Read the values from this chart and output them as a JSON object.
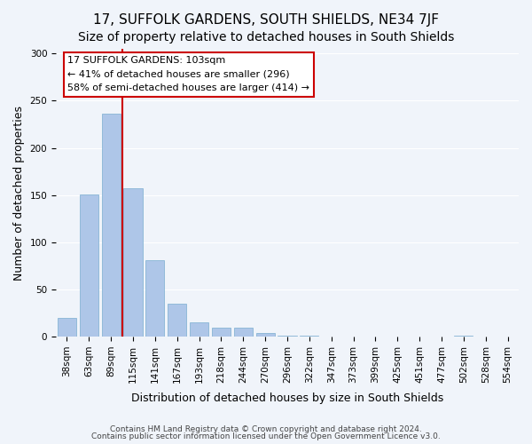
{
  "title": "17, SUFFOLK GARDENS, SOUTH SHIELDS, NE34 7JF",
  "subtitle": "Size of property relative to detached houses in South Shields",
  "xlabel": "Distribution of detached houses by size in South Shields",
  "ylabel": "Number of detached properties",
  "categories": [
    "38sqm",
    "63sqm",
    "89sqm",
    "115sqm",
    "141sqm",
    "167sqm",
    "193sqm",
    "218sqm",
    "244sqm",
    "270sqm",
    "296sqm",
    "322sqm",
    "347sqm",
    "373sqm",
    "399sqm",
    "425sqm",
    "451sqm",
    "477sqm",
    "502sqm",
    "528sqm",
    "554sqm"
  ],
  "values": [
    20,
    151,
    236,
    157,
    81,
    35,
    15,
    9,
    9,
    4,
    1,
    1,
    0,
    0,
    0,
    0,
    0,
    0,
    1,
    0,
    0
  ],
  "bar_color": "#aec6e8",
  "bar_edge_color": "#7aaed0",
  "vline_x": 2.5,
  "vline_color": "#cc0000",
  "annotation_title": "17 SUFFOLK GARDENS: 103sqm",
  "annotation_line1": "← 41% of detached houses are smaller (296)",
  "annotation_line2": "58% of semi-detached houses are larger (414) →",
  "box_edge_color": "#cc0000",
  "ylim": [
    0,
    305
  ],
  "yticks": [
    0,
    50,
    100,
    150,
    200,
    250,
    300
  ],
  "footnote1": "Contains HM Land Registry data © Crown copyright and database right 2024.",
  "footnote2": "Contains public sector information licensed under the Open Government Licence v3.0.",
  "background_color": "#f0f4fa",
  "grid_color": "#ffffff",
  "title_fontsize": 11,
  "subtitle_fontsize": 10,
  "axis_label_fontsize": 9,
  "tick_fontsize": 7.5,
  "annotation_text_fontsize": 8,
  "footnote_fontsize": 6.5
}
